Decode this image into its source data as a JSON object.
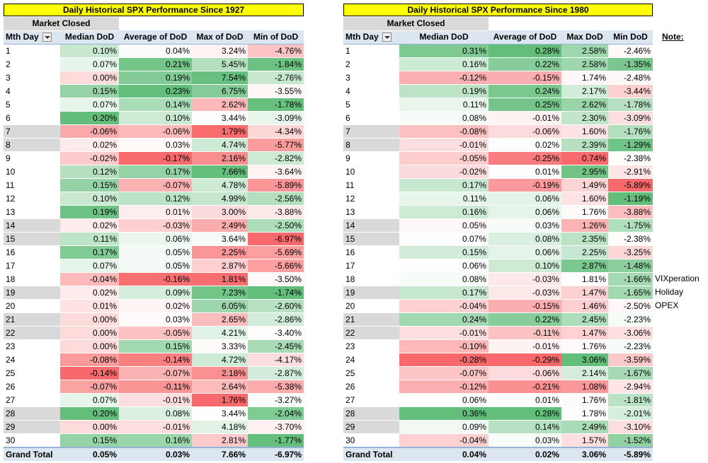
{
  "tables": [
    {
      "title": "Daily Historical SPX Performance Since 1927",
      "market_closed_label": "Market Closed",
      "headers": [
        "Mth Day",
        "Median DoD",
        "Average of DoD",
        "Max of DoD",
        "Min of DoD"
      ],
      "rows": [
        [
          "1",
          "0.10%",
          "0.04%",
          "3.24%",
          "-4.76%"
        ],
        [
          "2",
          "0.07%",
          "0.21%",
          "5.45%",
          "-1.84%"
        ],
        [
          "3",
          "0.00%",
          "0.19%",
          "7.54%",
          "-2.76%"
        ],
        [
          "4",
          "0.15%",
          "0.23%",
          "6.75%",
          "-3.55%"
        ],
        [
          "5",
          "0.07%",
          "0.14%",
          "2.62%",
          "-1.78%"
        ],
        [
          "6",
          "0.20%",
          "0.10%",
          "3.44%",
          "-3.09%"
        ],
        [
          "7",
          "-0.06%",
          "-0.06%",
          "1.79%",
          "-4.34%"
        ],
        [
          "8",
          "0.02%",
          "0.03%",
          "4.74%",
          "-5.77%"
        ],
        [
          "9",
          "-0.02%",
          "-0.17%",
          "2.16%",
          "-2.82%"
        ],
        [
          "10",
          "0.12%",
          "0.17%",
          "7.66%",
          "-3.64%"
        ],
        [
          "11",
          "0.15%",
          "-0.07%",
          "4.78%",
          "-5.89%"
        ],
        [
          "12",
          "0.10%",
          "0.12%",
          "4.99%",
          "-2.56%"
        ],
        [
          "13",
          "0.19%",
          "0.01%",
          "3.00%",
          "-3.88%"
        ],
        [
          "14",
          "0.02%",
          "-0.03%",
          "2.49%",
          "-2.50%"
        ],
        [
          "15",
          "0.11%",
          "0.06%",
          "3.64%",
          "-6.97%"
        ],
        [
          "16",
          "0.17%",
          "0.05%",
          "2.25%",
          "-5.69%"
        ],
        [
          "17",
          "0.07%",
          "0.05%",
          "2.87%",
          "-5.66%"
        ],
        [
          "18",
          "-0.04%",
          "-0.16%",
          "1.81%",
          "-3.50%"
        ],
        [
          "19",
          "0.02%",
          "0.09%",
          "7.23%",
          "-1.74%"
        ],
        [
          "20",
          "0.01%",
          "0.02%",
          "6.05%",
          "-2.60%"
        ],
        [
          "21",
          "0.00%",
          "0.03%",
          "2.65%",
          "-2.86%"
        ],
        [
          "22",
          "0.00%",
          "-0.05%",
          "4.21%",
          "-3.40%"
        ],
        [
          "23",
          "0.00%",
          "0.15%",
          "3.33%",
          "-2.45%"
        ],
        [
          "24",
          "-0.08%",
          "-0.14%",
          "4.72%",
          "-4.17%"
        ],
        [
          "25",
          "-0.14%",
          "-0.07%",
          "2.18%",
          "-2.87%"
        ],
        [
          "26",
          "-0.07%",
          "-0.11%",
          "2.64%",
          "-5.38%"
        ],
        [
          "27",
          "0.07%",
          "-0.01%",
          "1.76%",
          "-3.27%"
        ],
        [
          "28",
          "0.20%",
          "0.08%",
          "3.44%",
          "-2.04%"
        ],
        [
          "29",
          "0.00%",
          "-0.01%",
          "4.18%",
          "-3.70%"
        ],
        [
          "30",
          "0.15%",
          "0.16%",
          "2.81%",
          "-1.77%"
        ]
      ],
      "closed_days": [
        "7",
        "8",
        "14",
        "15",
        "19",
        "21",
        "22",
        "28",
        "29"
      ],
      "total": [
        "Grand Total",
        "0.05%",
        "0.03%",
        "7.66%",
        "-6.97%"
      ]
    },
    {
      "title": "Daily Historical SPX Performance Since 1980",
      "market_closed_label": "Market Closed",
      "headers": [
        "Mth Day",
        "Median DoD",
        "Average of DoD",
        "Max DoD",
        "Min DoD"
      ],
      "rows": [
        [
          "1",
          "0.31%",
          "0.28%",
          "2.58%",
          "-2.46%"
        ],
        [
          "2",
          "0.16%",
          "0.22%",
          "2.58%",
          "-1.35%"
        ],
        [
          "3",
          "-0.12%",
          "-0.15%",
          "1.74%",
          "-2.48%"
        ],
        [
          "4",
          "0.19%",
          "0.24%",
          "2.17%",
          "-3.44%"
        ],
        [
          "5",
          "0.11%",
          "0.25%",
          "2.62%",
          "-1.78%"
        ],
        [
          "6",
          "0.08%",
          "-0.01%",
          "2.30%",
          "-3.09%"
        ],
        [
          "7",
          "-0.08%",
          "-0.06%",
          "1.60%",
          "-1.76%"
        ],
        [
          "8",
          "-0.01%",
          "0.02%",
          "2.39%",
          "-1.29%"
        ],
        [
          "9",
          "-0.05%",
          "-0.25%",
          "0.74%",
          "-2.38%"
        ],
        [
          "10",
          "-0.02%",
          "0.01%",
          "2.95%",
          "-2.91%"
        ],
        [
          "11",
          "0.17%",
          "-0.19%",
          "1.49%",
          "-5.89%"
        ],
        [
          "12",
          "0.11%",
          "0.06%",
          "1.60%",
          "-1.19%"
        ],
        [
          "13",
          "0.16%",
          "0.06%",
          "1.76%",
          "-3.88%"
        ],
        [
          "14",
          "0.05%",
          "0.03%",
          "1.26%",
          "-1.75%"
        ],
        [
          "15",
          "0.07%",
          "0.08%",
          "2.35%",
          "-2.38%"
        ],
        [
          "16",
          "0.15%",
          "0.06%",
          "2.25%",
          "-3.25%"
        ],
        [
          "17",
          "0.06%",
          "0.10%",
          "2.87%",
          "-1.48%"
        ],
        [
          "18",
          "0.08%",
          "-0.03%",
          "1.81%",
          "-1.66%"
        ],
        [
          "19",
          "0.17%",
          "-0.03%",
          "1.47%",
          "-1.65%"
        ],
        [
          "20",
          "-0.04%",
          "-0.15%",
          "1.46%",
          "-2.50%"
        ],
        [
          "21",
          "0.24%",
          "0.22%",
          "2.45%",
          "-2.23%"
        ],
        [
          "22",
          "-0.01%",
          "-0.11%",
          "1.47%",
          "-3.06%"
        ],
        [
          "23",
          "-0.10%",
          "-0.01%",
          "1.76%",
          "-2.23%"
        ],
        [
          "24",
          "-0.28%",
          "-0.29%",
          "3.06%",
          "-3.59%"
        ],
        [
          "25",
          "-0.07%",
          "-0.06%",
          "2.14%",
          "-1.67%"
        ],
        [
          "26",
          "-0.12%",
          "-0.21%",
          "1.08%",
          "-2.94%"
        ],
        [
          "27",
          "0.06%",
          "0.01%",
          "1.76%",
          "-1.81%"
        ],
        [
          "28",
          "0.36%",
          "0.28%",
          "1.78%",
          "-2.01%"
        ],
        [
          "29",
          "0.09%",
          "0.14%",
          "2.49%",
          "-3.10%"
        ],
        [
          "30",
          "-0.04%",
          "0.03%",
          "1.57%",
          "-1.52%"
        ]
      ],
      "closed_days": [
        "7",
        "8",
        "14",
        "15",
        "19",
        "21",
        "22",
        "28",
        "29"
      ],
      "total": [
        "Grand Total",
        "0.04%",
        "0.02%",
        "3.06%",
        "-5.89%"
      ]
    }
  ],
  "notes": {
    "heading": "Note:",
    "items": [
      {
        "row_day": "18",
        "text": "VIXperation"
      },
      {
        "row_day": "19",
        "text": "Holiday"
      },
      {
        "row_day": "20",
        "text": "OPEX"
      }
    ]
  },
  "colors": {
    "title_bg": "#ffff00",
    "header_bg": "#dce6f1",
    "closed_bg": "#d9d9d9",
    "positive": "#63be7b",
    "negative": "#f8696b",
    "neutral": "#ffffff"
  }
}
